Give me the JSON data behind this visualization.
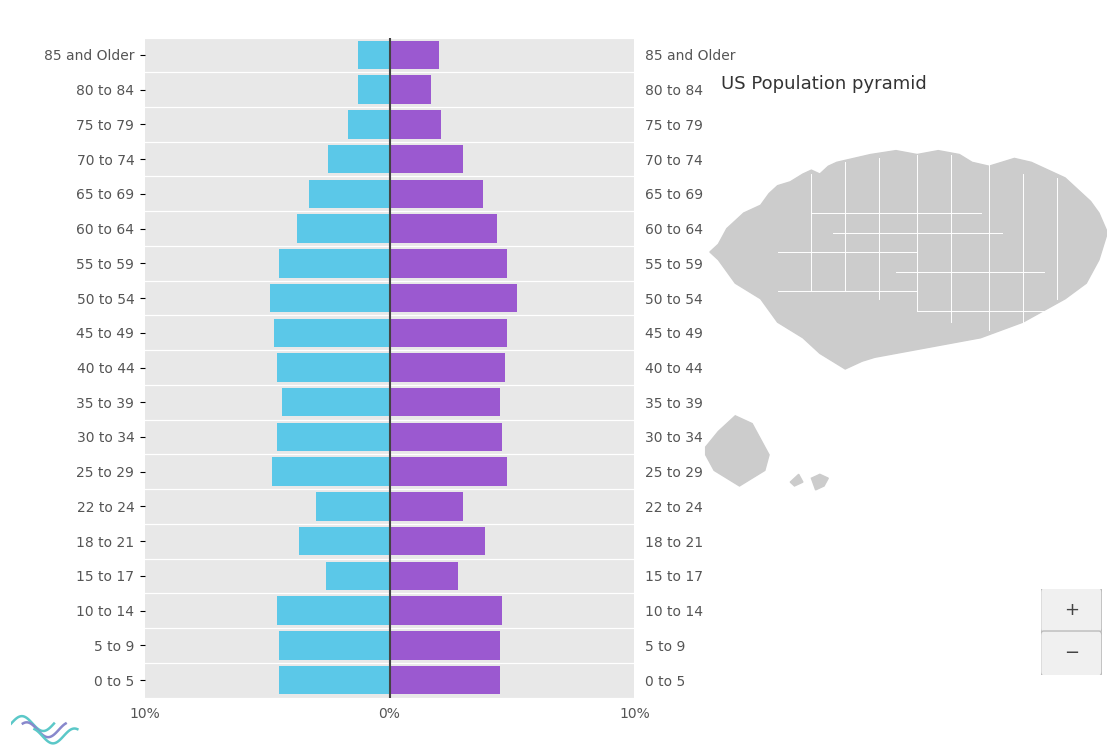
{
  "title": "US Population pyramid",
  "age_groups": [
    "85 and Older",
    "80 to 84",
    "75 to 79",
    "70 to 74",
    "65 to 69",
    "60 to 64",
    "55 to 59",
    "50 to 54",
    "45 to 49",
    "40 to 44",
    "35 to 39",
    "30 to 34",
    "25 to 29",
    "22 to 24",
    "18 to 21",
    "15 to 17",
    "10 to 14",
    "5 to 9",
    "0 to 5"
  ],
  "male_values": [
    1.3,
    1.3,
    1.7,
    2.5,
    3.3,
    3.8,
    4.5,
    4.9,
    4.7,
    4.6,
    4.4,
    4.6,
    4.8,
    3.0,
    3.7,
    2.6,
    4.6,
    4.5,
    4.5
  ],
  "female_values": [
    2.0,
    1.7,
    2.1,
    3.0,
    3.8,
    4.4,
    4.8,
    5.2,
    4.8,
    4.7,
    4.5,
    4.6,
    4.8,
    3.0,
    3.9,
    2.8,
    4.6,
    4.5,
    4.5
  ],
  "male_color": "#5BC8E8",
  "female_color": "#9B59D0",
  "chart_bg": "#e8e8e8",
  "fig_bg": "#ffffff",
  "axis_line_color": "#444444",
  "text_color": "#555555",
  "xlim": 10,
  "bar_height": 0.82,
  "title_fontsize": 13,
  "label_fontsize": 10,
  "xtick_fontsize": 10
}
